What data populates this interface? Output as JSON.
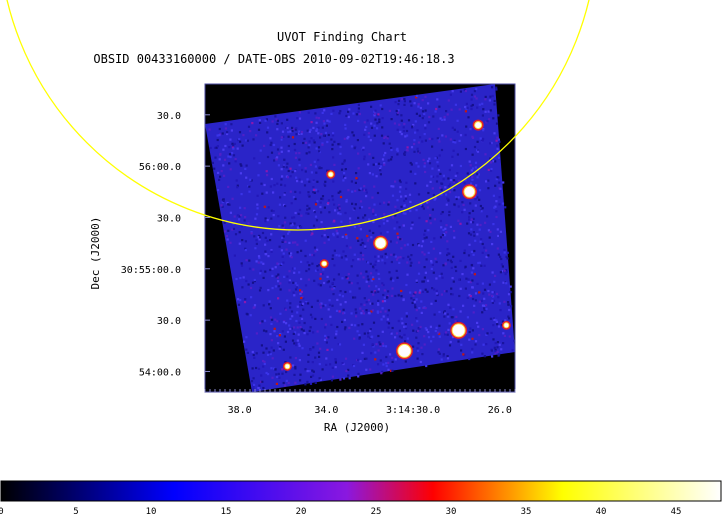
{
  "chart_data": {
    "type": "heatmap",
    "title": "UVOT Finding Chart",
    "subtitle": "OBSID 00433160000 / DATE-OBS 2010-09-02T19:46:18.3",
    "xlabel": "RA (J2000)",
    "ylabel": "Dec (J2000)",
    "x_ticks": [
      {
        "label": "38.0",
        "value": 38.0
      },
      {
        "label": "34.0",
        "value": 34.0
      },
      {
        "label": "3:14:30.0",
        "value": 30.0
      },
      {
        "label": "26.0",
        "value": 26.0
      }
    ],
    "y_ticks": [
      {
        "label": "30.0",
        "value": 30.5
      },
      {
        "label": "56:00.0",
        "value": 30.0
      },
      {
        "label": "30.0",
        "value": 29.5
      },
      {
        "label": "30:55:00.0",
        "value": 29.0
      },
      {
        "label": "30.0",
        "value": 28.5
      },
      {
        "label": "54:00.0",
        "value": 28.0
      }
    ],
    "xlim": [
      39.6,
      25.3
    ],
    "ylim_arcmin": [
      27.8,
      30.8
    ],
    "colorbar": {
      "ticks": [
        0,
        5,
        10,
        15,
        20,
        25,
        30,
        35,
        40,
        45
      ],
      "range": [
        0,
        48
      ],
      "colormap": [
        "#000000",
        "#0000ff",
        "#ff0000",
        "#ffff00",
        "#ffffff"
      ]
    },
    "sources": [
      {
        "x": 27.0,
        "y": 30.4,
        "intensity": 45,
        "r": 3
      },
      {
        "x": 27.4,
        "y": 29.75,
        "intensity": 48,
        "r": 5
      },
      {
        "x": 31.5,
        "y": 29.25,
        "intensity": 46,
        "r": 5
      },
      {
        "x": 33.8,
        "y": 29.92,
        "intensity": 32,
        "r": 2
      },
      {
        "x": 34.1,
        "y": 29.05,
        "intensity": 30,
        "r": 2
      },
      {
        "x": 27.9,
        "y": 28.4,
        "intensity": 48,
        "r": 6
      },
      {
        "x": 30.4,
        "y": 28.2,
        "intensity": 47,
        "r": 6
      },
      {
        "x": 25.7,
        "y": 28.45,
        "intensity": 38,
        "r": 2
      },
      {
        "x": 35.8,
        "y": 28.05,
        "intensity": 36,
        "r": 2
      }
    ],
    "circle_color": "#ffff00",
    "grid": false
  }
}
